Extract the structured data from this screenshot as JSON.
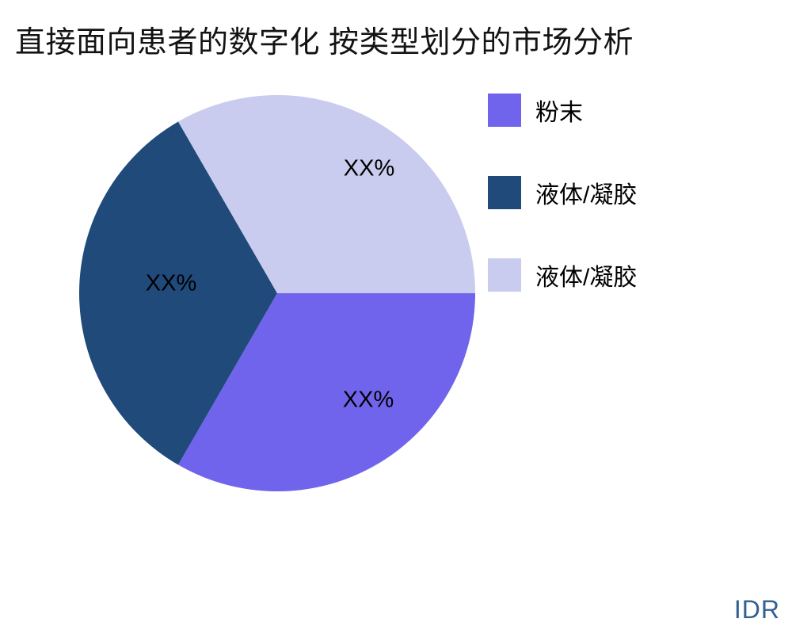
{
  "title": "直接面向患者的数字化 按类型划分的市场分析",
  "watermark": "IDR",
  "chart_data": {
    "type": "pie",
    "title": "直接面向患者的数字化 按类型划分的市场分析",
    "slices": [
      {
        "label": "粉末",
        "value": 33.33,
        "displayed_value": "XX%",
        "color": "#7164EC"
      },
      {
        "label": "液体/凝胶",
        "value": 33.33,
        "displayed_value": "XX%",
        "color": "#1F4A7A"
      },
      {
        "label": "液体/凝胶",
        "value": 33.33,
        "displayed_value": "XX%",
        "color": "#C9CCEE"
      }
    ],
    "start_angle_deg": 0,
    "direction": "clockwise",
    "legend_position": "right",
    "value_label_color": "#000000",
    "background": "#FFFFFF"
  },
  "legend": {
    "items": [
      {
        "label": "粉末",
        "color": "#7164EC"
      },
      {
        "label": "液体/凝胶",
        "color": "#1F4A7A"
      },
      {
        "label": "液体/凝胶",
        "color": "#C9CCEE"
      }
    ]
  },
  "colors": {
    "title": "#131313",
    "watermark": "#2F608E"
  }
}
